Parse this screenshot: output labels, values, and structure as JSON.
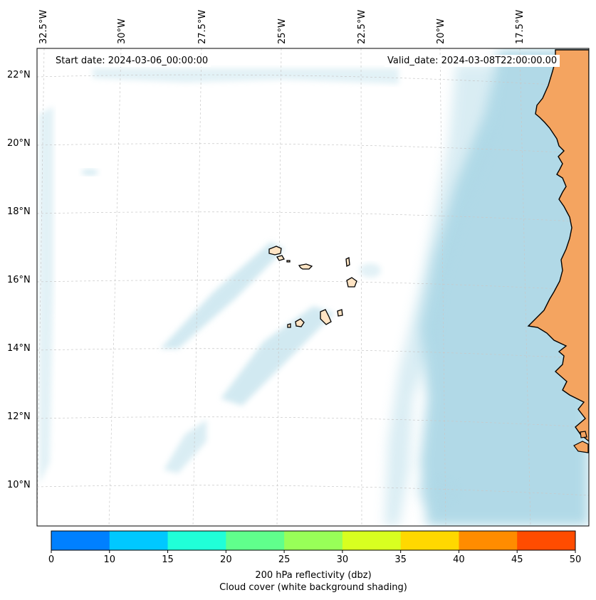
{
  "header": {
    "start_date": "Start date: 2024-03-06_00:00:00",
    "valid_date": "Valid_date: 2024-03-08T22:00:00.00"
  },
  "map": {
    "longitude_labels": [
      "32.5°W",
      "30°W",
      "27.5°W",
      "25°W",
      "22.5°W",
      "20°W",
      "17.5°W"
    ],
    "latitude_labels": [
      "22°N",
      "20°N",
      "18°N",
      "16°N",
      "14°N",
      "12°N",
      "10°N"
    ],
    "colors": {
      "cloud": "#add8e6",
      "land_africa": "#f4a460",
      "islands": "#ffe4c4",
      "coastline": "#000000",
      "grid": "#c8c8c8"
    }
  },
  "colorbar": {
    "ticks": [
      "0",
      "10",
      "15",
      "20",
      "25",
      "30",
      "35",
      "40",
      "45",
      "50"
    ],
    "colors": [
      "#0080ff",
      "#00c8ff",
      "#20ffd8",
      "#60ff8c",
      "#98ff58",
      "#d8ff20",
      "#ffd800",
      "#ff8c00",
      "#ff4c00"
    ],
    "label_line1": "200 hPa reflectivity (dbz)",
    "label_line2": "Cloud cover (white background shading)"
  }
}
